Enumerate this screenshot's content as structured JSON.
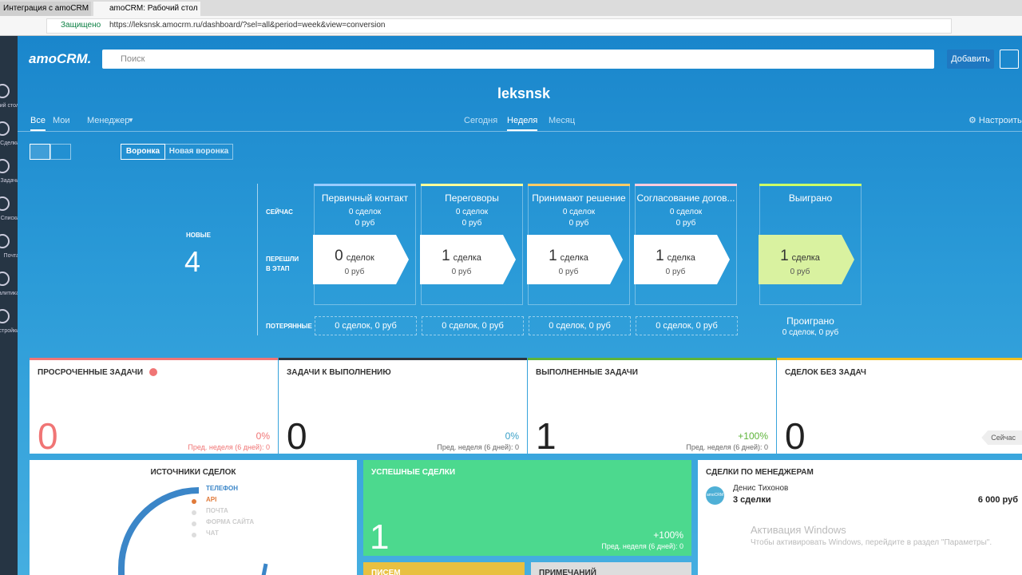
{
  "browser": {
    "tabs": [
      "Интеграция с amoCRM",
      "amoCRM: Рабочий стол"
    ],
    "secure": "Защищено",
    "url": "https://leksnsk.amocrm.ru/dashboard/?sel=all&period=week&view=conversion"
  },
  "sidebar": [
    "Рабочий стол",
    "Сделки",
    "Задачи",
    "Списки",
    "Почта",
    "Аналитика",
    "Настройки"
  ],
  "header": {
    "logo": "amoCRM.",
    "search": "Поиск",
    "add": "Добавить"
  },
  "title": "leksnsk",
  "filters": [
    "Все",
    "Мои",
    "Менеджер"
  ],
  "periods": [
    "Сегодня",
    "Неделя",
    "Месяц"
  ],
  "settings": "Настроить",
  "views": [
    "Воронка",
    "Новая воронка"
  ],
  "funnel": {
    "rows": [
      "СЕЙЧАС",
      "ПЕРЕШЛИ В ЭТАП",
      "ПОТЕРЯННЫЕ"
    ],
    "new_label": "НОВЫЕ",
    "new_count": 4,
    "stages": [
      {
        "name": "Первичный контакт",
        "color": "#99ccff",
        "now_deals": "0 сделок",
        "now_sum": "0 руб",
        "moved": 0,
        "moved_unit": "сделок",
        "moved_sum": "0 руб",
        "lost": "0 сделок, 0 руб"
      },
      {
        "name": "Переговоры",
        "color": "#ffff99",
        "now_deals": "0 сделок",
        "now_sum": "0 руб",
        "moved": 1,
        "moved_unit": "сделка",
        "moved_sum": "0 руб",
        "lost": "0 сделок, 0 руб"
      },
      {
        "name": "Принимают решение",
        "color": "#ffcc66",
        "now_deals": "0 сделок",
        "now_sum": "0 руб",
        "moved": 1,
        "moved_unit": "сделка",
        "moved_sum": "0 руб",
        "lost": "0 сделок, 0 руб"
      },
      {
        "name": "Согласование догов...",
        "color": "#ffccdd",
        "now_deals": "0 сделок",
        "now_sum": "0 руб",
        "moved": 1,
        "moved_unit": "сделка",
        "moved_sum": "0 руб",
        "lost": "0 сделок, 0 руб"
      }
    ],
    "won": {
      "name": "Выиграно",
      "color": "#ccff66",
      "moved": 1,
      "moved_unit": "сделка",
      "moved_sum": "0 руб"
    },
    "lost": {
      "name": "Проиграно",
      "text": "0 сделок, 0 руб"
    }
  },
  "task_cards": [
    {
      "title": "ПРОСРОЧЕННЫЕ ЗАДАЧИ",
      "color": "#f07575",
      "value": 0,
      "change": "0%",
      "prev": "Пред. неделя (6 дней): 0"
    },
    {
      "title": "ЗАДАЧИ К ВЫПОЛНЕНИЮ",
      "color": "#2e3640",
      "value": 0,
      "change": "0%",
      "prev": "Пред. неделя (6 дней): 0"
    },
    {
      "title": "ВЫПОЛНЕННЫЕ ЗАДАЧИ",
      "color": "#5eb43a",
      "value": 1,
      "change": "+100%",
      "prev": "Пред. неделя (6 дней): 0"
    },
    {
      "title": "СДЕЛОК БЕЗ ЗАДАЧ",
      "color": "#f0c020",
      "value": 0,
      "tag": "Сейчас"
    }
  ],
  "sources": {
    "title": "ИСТОЧНИКИ СДЕЛОК",
    "legend": [
      "ТЕЛЕФОН",
      "API",
      "ПОЧТА",
      "ФОРМА САЙТА",
      "ЧАТ"
    ]
  },
  "success": {
    "title": "УСПЕШНЫЕ СДЕЛКИ",
    "value": 1,
    "change": "+100%",
    "prev": "Пред. неделя (6 дней): 0"
  },
  "small_cards": [
    "ПИСЕМ",
    "ПРИМЕЧАНИЙ"
  ],
  "managers": {
    "title": "СДЕЛКИ ПО МЕНЕДЖЕРАМ",
    "avatar": "amoCRM",
    "name": "Денис Тихонов",
    "deals": "3 сделки",
    "sum": "6 000 руб"
  },
  "watermark": {
    "title": "Активация Windows",
    "text": "Чтобы активировать Windows, перейдите в раздел \"Параметры\"."
  }
}
